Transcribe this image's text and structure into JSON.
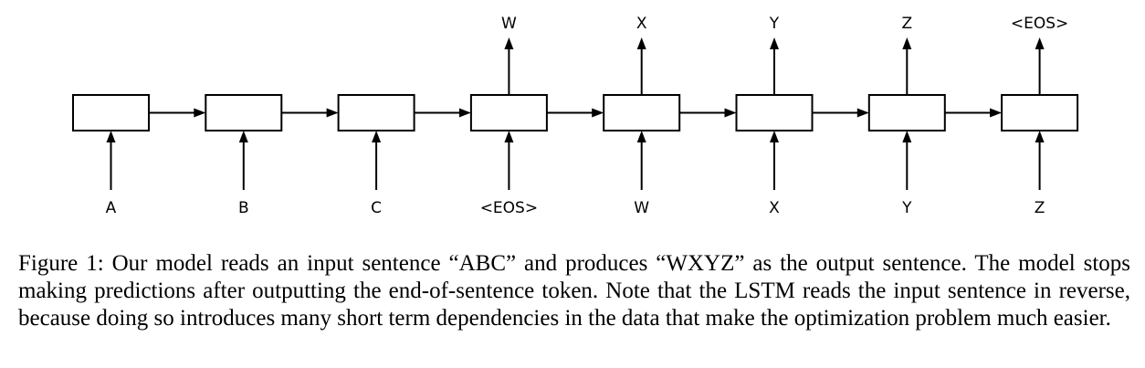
{
  "figure": {
    "inputs": [
      "A",
      "B",
      "C",
      "<EOS>",
      "W",
      "X",
      "Y",
      "Z"
    ],
    "outputs": [
      "",
      "",
      "",
      "W",
      "X",
      "Y",
      "Z",
      "<EOS>"
    ]
  },
  "caption": {
    "label": "Figure 1:",
    "text": "Our model reads an input sentence “ABC” and produces “WXYZ” as the output sentence. The model stops making predictions after outputting the end-of-sentence token. Note that the LSTM reads the input sentence in reverse, because doing so introduces many short term dependencies in the data that make the optimization problem much easier."
  }
}
